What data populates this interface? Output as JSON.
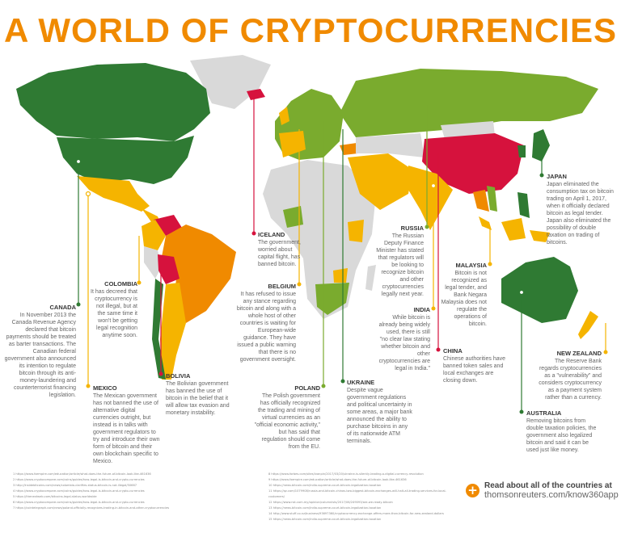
{
  "title": "A WORLD OF CRYPTOCURRENCIES",
  "colors": {
    "title": "#f08a00",
    "dark_green": "#2f7a33",
    "light_green": "#7aab2e",
    "yellow": "#f5b400",
    "orange": "#f08a00",
    "red": "#d6123d",
    "no_data": "#d9d9d9"
  },
  "callouts": [
    {
      "country": "CANADA",
      "text": "In November 2013 the Canada Revenue Agency declared that bitcoin payments should be treated as barter transactions. The Canadian federal government also announced its intention to regulate bitcoin through its anti-money-laundering and counterterrorist financing legislation.",
      "color": "#2f7a33"
    },
    {
      "country": "COLOMBIA",
      "text": "It has decreed that cryptocurrency is not illegal, but at the same time it won't be getting legal recognition anytime soon.",
      "color": "#f5b400"
    },
    {
      "country": "MEXICO",
      "text": "The Mexican government has not banned the use of alternative digital currencies outright, but instead is in talks with government regulators to try and introduce their own form of bitcoin and their own blockchain specific to Mexico.",
      "color": "#f5b400"
    },
    {
      "country": "BOLIVIA",
      "text": "The Bolivian government has banned the use of bitcoin in the belief that it will allow tax evasion and monetary instability.",
      "color": "#d6123d"
    },
    {
      "country": "ICELAND",
      "text": "The government, worried about capital flight, has banned bitcoin.",
      "color": "#d6123d"
    },
    {
      "country": "BELGIUM",
      "text": "It has refused to issue any stance regarding bitcoin and along with a whole host of other countries is waiting for European-wide guidance. They have issued a public warning that there is no government oversight.",
      "color": "#f5b400"
    },
    {
      "country": "POLAND",
      "text": "The Polish government has officially recognized the trading and mining of virtual currencies as an \"official economic activity,\" but has said that regulation should come from the EU.",
      "color": "#7aab2e"
    },
    {
      "country": "UKRAINE",
      "text": "Despite vague government regulations and political uncertainty in some areas, a major bank announced the ability to purchase bitcoins in any of its nationwide ATM terminals.",
      "color": "#2f7a33"
    },
    {
      "country": "RUSSIA",
      "text": "The Russian Deputy Finance Minister has stated that regulators will be looking to recognize bitcoin and other cryptocurrencies legally next year.",
      "color": "#7aab2e"
    },
    {
      "country": "INDIA",
      "text": "While bitcoin is already being widely used, there is still \"no clear law stating whether bitcoin and other cryptocurrencies are legal in India.\"",
      "color": "#f5b400"
    },
    {
      "country": "CHINA",
      "text": "Chinese authorities have banned token sales and local exchanges are closing down.",
      "color": "#d6123d"
    },
    {
      "country": "MALAYSIA",
      "text": "Bitcoin is not recognized as legal tender, and Bank Negara Malaysia does not regulate the operations of bitcoin.",
      "color": "#f5b400"
    },
    {
      "country": "JAPAN",
      "text": "Japan eliminated the consumption tax on bitcoin trading on April 1, 2017, when it officially declared bitcoin as legal tender. Japan also eliminated the possibility of double taxation on trading of bitcoins.",
      "color": "#2f7a33"
    },
    {
      "country": "NEW ZEALAND",
      "text": "The Reserve Bank regards cryptocurrencies as a \"vulnerability\" and considers cryptocurrency as a payment system rather than a currency.",
      "color": "#f5b400"
    },
    {
      "country": "AUSTRALIA",
      "text": "Removing bitcoins from double taxation policies, the government also legalized bitcoin and said it can be used just like money.",
      "color": "#2f7a33"
    }
  ],
  "footnotes_left": [
    "1 https://www.fxempire.com/education/article/what-does-the-future-of-bitcoin-look-like-461636",
    "2 https://www.cryptocompare.com/coins/guides/how-legal-is-bitcoin-and-crypto-currencies",
    "3 http://insidebitcoins.com/news/colombia-clarifies-status-bitcoin-is-not-illegal/50667",
    "4 https://www.cryptocompare.com/coins/guides/how-legal-is-bitcoin-and-crypto-currencies",
    "5 https://thenextweb.com/bitcoins-legal-status-worldwide",
    "6 https://www.cryptocompare.com/coins/guides/how-legal-is-bitcoin-and-crypto-currencies",
    "7 https://cointelegraph.com/news/poland-officially-recognizes-trading-in-bitcoin-and-other-cryptocurrencies"
  ],
  "footnotes_right": [
    "8 https://www.forbes.com/sites/ivanpin/2017/03/20/ukraine-is-silently-leading-a-digital-currency-revolution",
    "9 https://www.fxempire.com/education/article/what-does-the-future-of-bitcoin-look-like-461636",
    "10 https://news.bitcoin.com/india-supreme-court-bitcoin-legalization-taxation",
    "11 https://qz.com/1079908/russia-and-bitcoin-chinas-two-biggest-bitcoin-exchanges-will-halt-all-trading-services-for-local-customers/",
    "12 https://www.nst.com.my/opinion/columnists/2017/06/249093/are-we-ready-bitcoin",
    "13 https://news.bitcoin.com/india-supreme-court-bitcoin-legalization-taxation",
    "14 http://www.stuff.co.nz/business/93697360/cryptocurrency-exchange-offers-more-than-bitcoin-for-new-zealand-dollars",
    "15 https://news.bitcoin.com/india-supreme-court-bitcoin-legalization-taxation"
  ],
  "cta": {
    "icon": "plus-circle-icon",
    "line1": "Read about all of the countries at",
    "line2": "thomsonreuters.com/know360app"
  }
}
